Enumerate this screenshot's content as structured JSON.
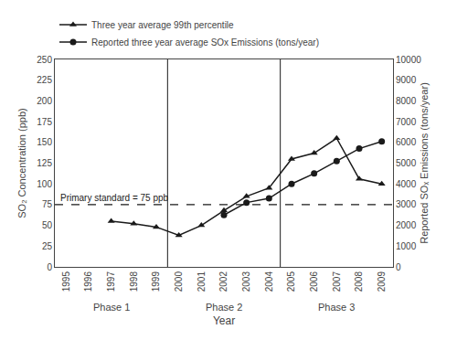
{
  "chart_data": {
    "type": "line",
    "xlabel": "Year",
    "ylabel": "SO₂ Concentration (ppb)",
    "y2label": "Reported SOₓ Emissions (tons/year)",
    "x": [
      1995,
      1996,
      1997,
      1998,
      1999,
      2000,
      2001,
      2002,
      2003,
      2004,
      2005,
      2006,
      2007,
      2008,
      2009
    ],
    "series": [
      {
        "name": "Three year average 99th percentile",
        "color": "#1a1a1a",
        "marker": "triangle",
        "line_style": "solid",
        "values": [
          null,
          null,
          55,
          52,
          48,
          38,
          50,
          68,
          85,
          95,
          130,
          137,
          155,
          106,
          100
        ]
      },
      {
        "name": "Reported three year average SOx Emissions (tons/year)",
        "color": "#1a1a1a",
        "marker": "circle",
        "line_style": "solid",
        "axis": "y2",
        "values": [
          null,
          null,
          null,
          null,
          null,
          null,
          null,
          2500,
          3100,
          3300,
          4000,
          4500,
          5100,
          5700,
          6050
        ]
      }
    ],
    "xlim": [
      1994.5,
      2009.5
    ],
    "xticks": [
      1995,
      1996,
      1997,
      1998,
      1999,
      2000,
      2001,
      2002,
      2003,
      2004,
      2005,
      2006,
      2007,
      2008,
      2009
    ],
    "ylim": [
      0,
      250
    ],
    "yticks": [
      0,
      25,
      50,
      75,
      100,
      125,
      150,
      175,
      200,
      225,
      250
    ],
    "y2lim": [
      0,
      10000
    ],
    "y2ticks": [
      0,
      1000,
      2000,
      3000,
      4000,
      5000,
      6000,
      7000,
      8000,
      9000,
      10000
    ],
    "reference_lines": [
      {
        "y": 75,
        "label": "Primary standard = 75 ppb",
        "line_style": "dashed",
        "color": "#1a1a1a"
      }
    ],
    "vlines": [
      1999.5,
      2004.5
    ],
    "phases": [
      {
        "label": "Phase 1",
        "x": 1997.0
      },
      {
        "label": "Phase 2",
        "x": 2002.0
      },
      {
        "label": "Phase 3",
        "x": 2007.0
      }
    ],
    "legend": "upper left",
    "grid": false
  }
}
